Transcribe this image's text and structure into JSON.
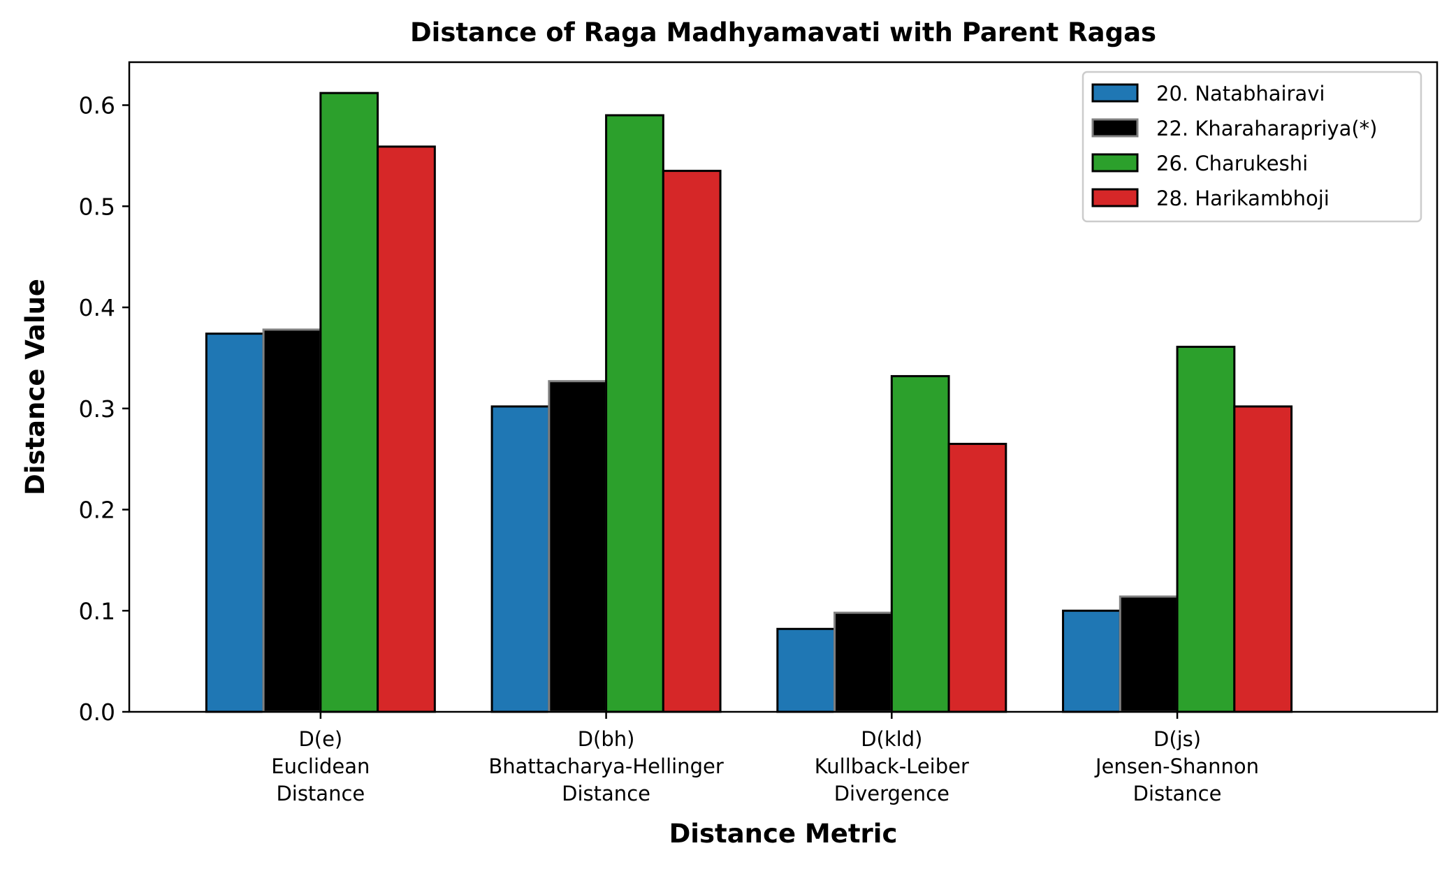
{
  "chart_data": {
    "type": "bar",
    "title": "Distance of Raga Madhyamavati with Parent Ragas",
    "xlabel": "Distance Metric",
    "ylabel": "Distance Value",
    "ylim": [
      0,
      0.6425
    ],
    "yticks": [
      "0.0",
      "0.1",
      "0.2",
      "0.3",
      "0.4",
      "0.5",
      "0.6"
    ],
    "categories": [
      [
        "D(e)",
        "Euclidean",
        "Distance"
      ],
      [
        "D(bh)",
        "Bhattacharya-Hellinger",
        "Distance"
      ],
      [
        "D(kld)",
        "Kullback-Leiber",
        "Divergence"
      ],
      [
        "D(js)",
        "Jensen-Shannon",
        "Distance"
      ]
    ],
    "series": [
      {
        "name": "20. Natabhairavi",
        "color": "#1f77b4",
        "edge": "#000000",
        "values": [
          0.374,
          0.302,
          0.082,
          0.1
        ]
      },
      {
        "name": "22. Kharaharapriya(*)",
        "color": "#000000",
        "edge": "#808080",
        "values": [
          0.378,
          0.327,
          0.098,
          0.114
        ]
      },
      {
        "name": "26. Charukeshi",
        "color": "#2ca02c",
        "edge": "#000000",
        "values": [
          0.612,
          0.59,
          0.332,
          0.361
        ]
      },
      {
        "name": "28. Harikambhoji",
        "color": "#d62728",
        "edge": "#000000",
        "values": [
          0.559,
          0.535,
          0.265,
          0.302
        ]
      }
    ],
    "legend_position": "top-right",
    "grid": false
  }
}
